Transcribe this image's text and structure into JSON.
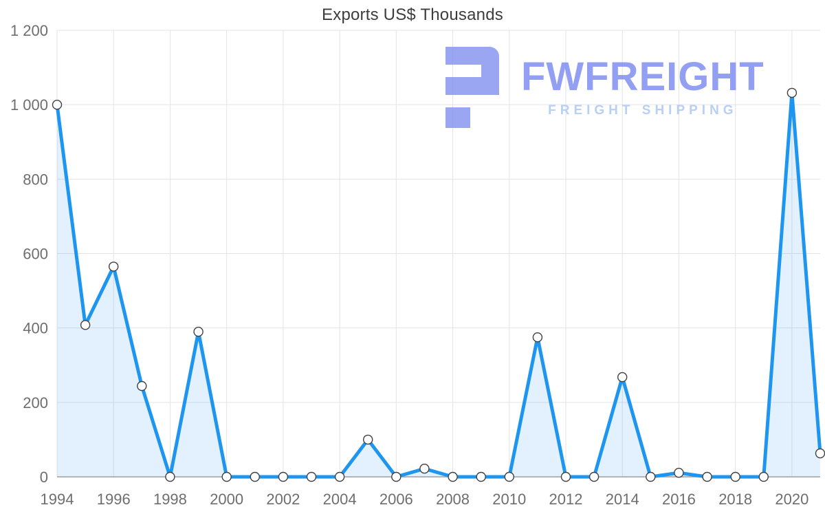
{
  "page": {
    "background": "#ffffff"
  },
  "chart_data": {
    "type": "line",
    "title": "Exports US$ Thousands",
    "xlabel": "",
    "ylabel": "",
    "x": [
      1994,
      1995,
      1996,
      1997,
      1998,
      1999,
      2000,
      2001,
      2002,
      2003,
      2004,
      2005,
      2006,
      2007,
      2008,
      2009,
      2010,
      2011,
      2012,
      2013,
      2014,
      2015,
      2016,
      2017,
      2018,
      2019,
      2020,
      2021
    ],
    "values": [
      1000,
      408,
      565,
      244,
      0,
      390,
      0,
      0,
      0,
      0,
      0,
      100,
      0,
      22,
      0,
      0,
      0,
      375,
      0,
      0,
      268,
      0,
      11,
      0,
      0,
      0,
      1032,
      63
    ],
    "xlim": [
      1994,
      2021
    ],
    "ylim": [
      0,
      1200
    ],
    "x_ticks": [
      1994,
      1996,
      1998,
      2000,
      2002,
      2004,
      2006,
      2008,
      2010,
      2012,
      2014,
      2016,
      2018,
      2020
    ],
    "x_tick_labels": [
      "1994",
      "1996",
      "1998",
      "2000",
      "2002",
      "2004",
      "2006",
      "2008",
      "2010",
      "2012",
      "2014",
      "2016",
      "2018",
      "2020"
    ],
    "y_ticks": [
      0,
      200,
      400,
      600,
      800,
      1000,
      1200
    ],
    "y_tick_labels": [
      "0",
      "200",
      "400",
      "600",
      "800",
      "1 000",
      "1 200"
    ],
    "grid": true,
    "legend": "none",
    "marker": "circle",
    "area_filled": true
  },
  "watermark": {
    "brand": "FWFREIGHT",
    "tagline": "FREIGHT SHIPPING"
  },
  "colors": {
    "line": "#1E96F0",
    "area_fill": "rgba(30,150,240,0.13)",
    "marker_fill": "#FFFFFF",
    "marker_stroke": "#404040",
    "grid": "#E3E3E3",
    "axis": "#9E9E9E",
    "tick_label": "#6E6E6E",
    "title": "#3D3D3D",
    "brand": "#7B8BF0",
    "tagline": "#A9C6F2",
    "logo": "#8593EF"
  }
}
